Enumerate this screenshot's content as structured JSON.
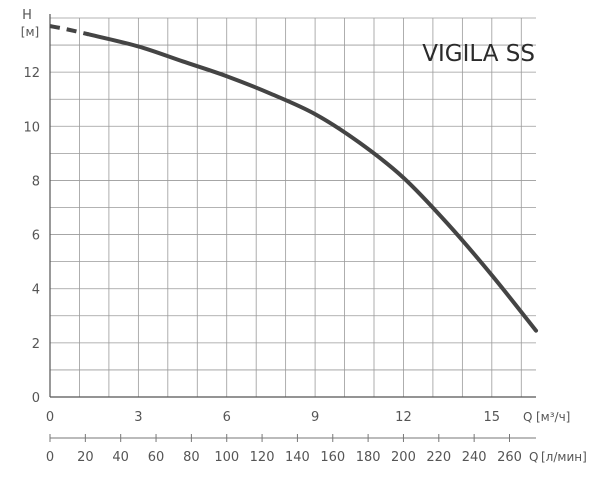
{
  "chart_data": {
    "type": "line",
    "title": "VIGILA SS",
    "ylabel": "H",
    "yunit": "[м]",
    "xlabel": "Q",
    "xunit": "[м³/ч]",
    "x2label": "Q",
    "x2unit": "[л/мин]",
    "xlim": [
      0,
      16.5
    ],
    "ylim": [
      0,
      14
    ],
    "x2lim": [
      0,
      275
    ],
    "xticks": [
      "0",
      "3",
      "6",
      "9",
      "12",
      "15"
    ],
    "xtick_values": [
      0,
      3,
      6,
      9,
      12,
      15
    ],
    "x2ticks": [
      "0",
      "20",
      "40",
      "60",
      "80",
      "100",
      "120",
      "140",
      "160",
      "180",
      "200",
      "220",
      "240",
      "260"
    ],
    "x2tick_values": [
      0,
      20,
      40,
      60,
      80,
      100,
      120,
      140,
      160,
      180,
      200,
      220,
      240,
      260
    ],
    "yticks": [
      "0",
      "2",
      "4",
      "6",
      "8",
      "10",
      "12"
    ],
    "ytick_values": [
      0,
      2,
      4,
      6,
      8,
      10,
      12
    ],
    "grid": true,
    "series": [
      {
        "style": "dashed",
        "color": "#444444",
        "points": [
          [
            0,
            13.7
          ],
          [
            0.5,
            13.6
          ],
          [
            1.3,
            13.4
          ]
        ]
      },
      {
        "style": "solid",
        "color": "#444444",
        "points": [
          [
            1.3,
            13.4
          ],
          [
            3,
            12.95
          ],
          [
            4.5,
            12.4
          ],
          [
            6,
            11.85
          ],
          [
            7.5,
            11.2
          ],
          [
            9,
            10.45
          ],
          [
            10.5,
            9.4
          ],
          [
            12,
            8.1
          ],
          [
            13.5,
            6.4
          ],
          [
            15,
            4.5
          ],
          [
            16.5,
            2.45
          ]
        ]
      }
    ]
  }
}
